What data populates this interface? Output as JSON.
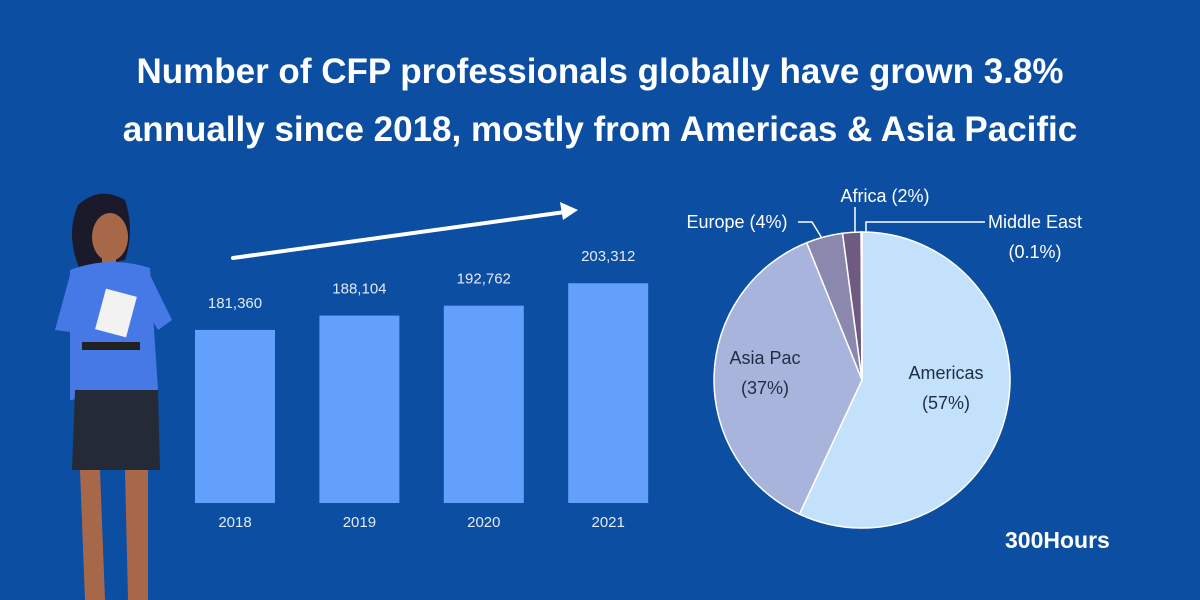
{
  "header": {
    "title": [
      "Number of CFP professionals globally have grown 3.8%",
      "annually since 2018, mostly from Americas & Asia Pacific"
    ]
  },
  "chart_data": [
    {
      "type": "bar",
      "categories": [
        "2018",
        "2019",
        "2020",
        "2021"
      ],
      "values": [
        181360,
        188104,
        192762,
        203312
      ],
      "value_labels": [
        "181,360",
        "188,104",
        "192,762",
        "203,312"
      ],
      "color": "#62a0fb",
      "ylim": [
        100000,
        210000
      ]
    },
    {
      "type": "pie",
      "categories": [
        "Americas",
        "Asia Pac",
        "Europe",
        "Africa",
        "Middle East"
      ],
      "values": [
        57,
        37,
        4,
        2,
        0.1
      ],
      "value_labels": [
        "(57%)",
        "(37%)",
        "(4%)",
        "(2%)",
        "(0.1%)"
      ],
      "colors": [
        "#c3e1fb",
        "#a8b4dc",
        "#8b88ae",
        "#6f5a81",
        "#5a3f67"
      ]
    }
  ],
  "brand": "300Hours"
}
